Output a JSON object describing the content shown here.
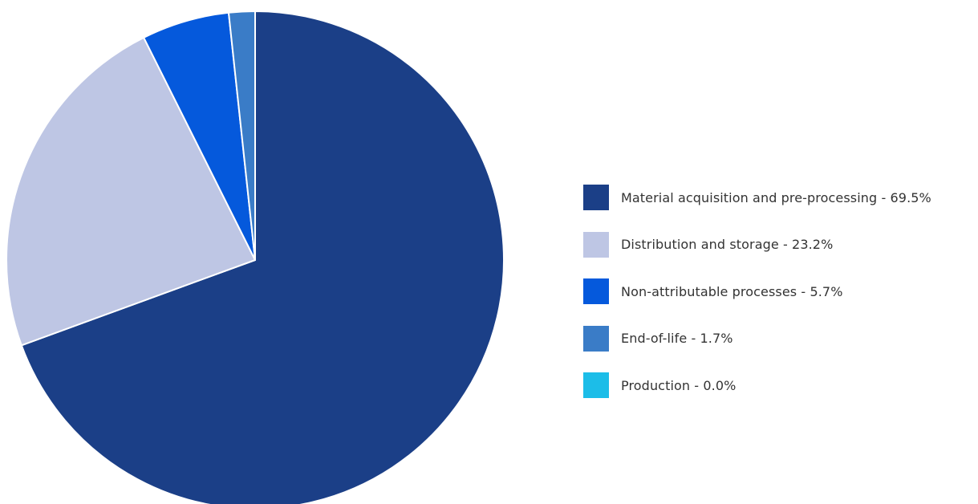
{
  "chart_data": {
    "type": "pie",
    "title": "",
    "start_angle_deg": 0,
    "direction": "clockwise",
    "legend_position": "right",
    "categories": [
      "Material acquisition and pre-processing",
      "Distribution and storage",
      "Non-attributable processes",
      "End-of-life",
      "Production"
    ],
    "values": [
      69.5,
      23.2,
      5.7,
      1.7,
      0.0
    ],
    "unit": "%",
    "colors": [
      "#1b3f87",
      "#bec6e4",
      "#0559dc",
      "#3a7cc7",
      "#1cbde8"
    ],
    "legend": [
      {
        "label": "Material acquisition and pre-processing - 69.5%",
        "color": "#1b3f87"
      },
      {
        "label": "Distribution and storage - 23.2%",
        "color": "#bec6e4"
      },
      {
        "label": "Non-attributable processes - 5.7%",
        "color": "#0559dc"
      },
      {
        "label": "End-of-life - 1.7%",
        "color": "#3a7cc7"
      },
      {
        "label": "Production - 0.0%",
        "color": "#1cbde8"
      }
    ]
  }
}
